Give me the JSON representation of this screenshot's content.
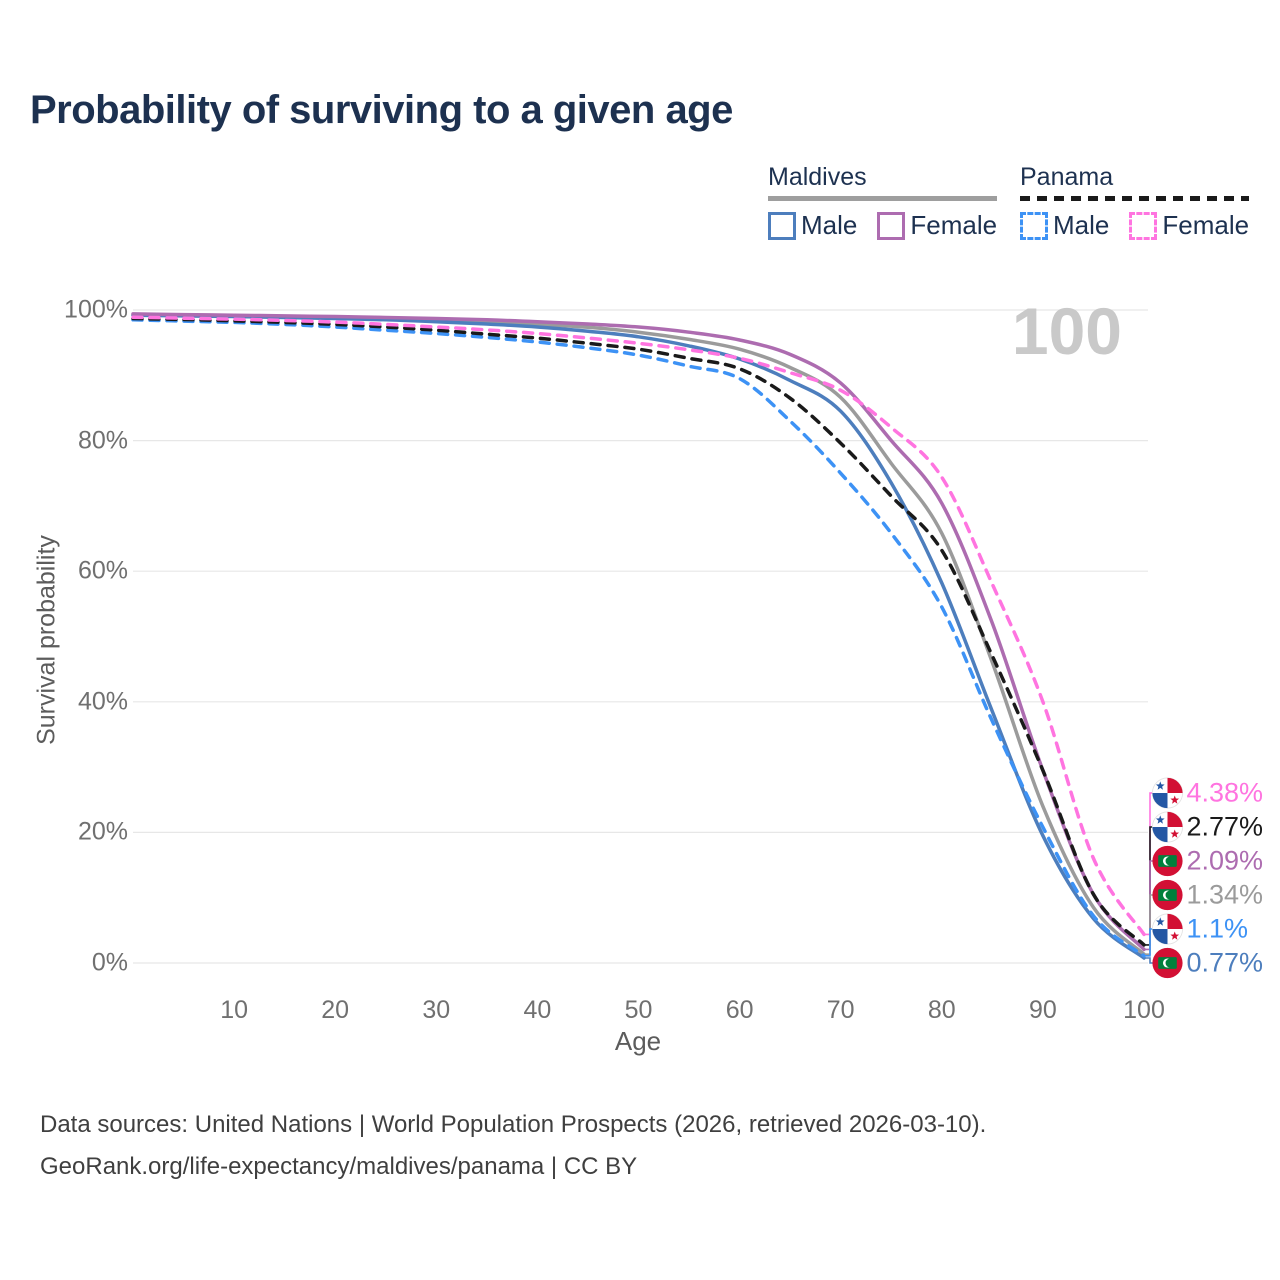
{
  "title": "Probability of surviving to a given age",
  "legend": {
    "groups": [
      {
        "title": "Maldives",
        "line_style": "solid",
        "underline_color": "#9e9e9e",
        "items": [
          {
            "label": "Male",
            "color": "#4d7ebd"
          },
          {
            "label": "Female",
            "color": "#ad6cb0"
          }
        ]
      },
      {
        "title": "Panama",
        "line_style": "dashed",
        "underline_color": "#1a1a1a",
        "items": [
          {
            "label": "Male",
            "color": "#3d92f5"
          },
          {
            "label": "Female",
            "color": "#ff74e0"
          }
        ]
      }
    ]
  },
  "watermark_age": "100",
  "chart_data": {
    "type": "line",
    "title": "Probability of surviving to a given age",
    "xlabel": "Age",
    "ylabel": "Survival probability",
    "xlim": [
      0,
      100
    ],
    "ylim": [
      0,
      100
    ],
    "grid": true,
    "x_ticks": [
      10,
      20,
      30,
      40,
      50,
      60,
      70,
      80,
      90,
      100
    ],
    "y_ticks": [
      {
        "value": 0,
        "label": "0%"
      },
      {
        "value": 20,
        "label": "20%"
      },
      {
        "value": 40,
        "label": "40%"
      },
      {
        "value": 60,
        "label": "60%"
      },
      {
        "value": 80,
        "label": "80%"
      },
      {
        "value": 100,
        "label": "100%"
      }
    ],
    "x": [
      0,
      5,
      10,
      15,
      20,
      25,
      30,
      35,
      40,
      45,
      50,
      55,
      60,
      65,
      70,
      75,
      80,
      85,
      90,
      95,
      100
    ],
    "series": [
      {
        "name": "Maldives",
        "country": "maldives",
        "sex": "both",
        "style": "solid",
        "color": "#9b9b9b",
        "end_label": "1.34%",
        "values": [
          99.3,
          99.2,
          99.1,
          99.0,
          98.85,
          98.7,
          98.45,
          98.15,
          97.8,
          97.35,
          96.6,
          95.5,
          94.0,
          91.2,
          86.6,
          76.5,
          65.8,
          46.0,
          24.0,
          8.5,
          1.34
        ]
      },
      {
        "name": "Maldives Male",
        "country": "maldives",
        "sex": "male",
        "style": "solid",
        "color": "#4d7ebd",
        "end_label": "0.77%",
        "values": [
          99.2,
          99.1,
          99.0,
          98.85,
          98.7,
          98.5,
          98.2,
          97.85,
          97.4,
          96.75,
          95.9,
          94.5,
          92.5,
          89.2,
          84.5,
          73.5,
          58.2,
          38.5,
          19.5,
          6.8,
          0.77
        ]
      },
      {
        "name": "Maldives Female",
        "country": "maldives",
        "sex": "female",
        "style": "solid",
        "color": "#ad6cb0",
        "end_label": "2.09%",
        "values": [
          99.4,
          99.3,
          99.2,
          99.1,
          99.0,
          98.85,
          98.7,
          98.5,
          98.2,
          97.85,
          97.4,
          96.6,
          95.4,
          93.2,
          88.8,
          80.0,
          70.4,
          52.0,
          29.5,
          10.5,
          2.09
        ]
      },
      {
        "name": "Panama Male",
        "country": "panama",
        "sex": "male",
        "style": "dashed",
        "color": "#3d92f5",
        "end_label": "1.1%",
        "values": [
          98.5,
          98.3,
          98.1,
          97.8,
          97.4,
          96.9,
          96.4,
          95.8,
          95.1,
          94.2,
          93.1,
          91.4,
          89.5,
          83.0,
          75.0,
          65.8,
          54.5,
          37.0,
          20.8,
          7.2,
          1.1
        ]
      },
      {
        "name": "Panama",
        "country": "panama",
        "sex": "both",
        "style": "dashed",
        "color": "#1a1a1a",
        "end_label": "2.77%",
        "values": [
          98.7,
          98.55,
          98.35,
          98.1,
          97.8,
          97.4,
          96.9,
          96.3,
          95.7,
          94.9,
          94.0,
          92.6,
          91.0,
          86.5,
          79.6,
          71.5,
          63.2,
          47.0,
          29.5,
          10.5,
          2.77
        ]
      },
      {
        "name": "Panama Female",
        "country": "panama",
        "sex": "female",
        "style": "dashed",
        "color": "#ff74e0",
        "end_label": "4.38%",
        "values": [
          98.9,
          98.75,
          98.6,
          98.4,
          98.15,
          97.8,
          97.4,
          96.95,
          96.4,
          95.7,
          94.9,
          93.9,
          92.6,
          90.4,
          87.7,
          82.0,
          74.4,
          58.0,
          40.0,
          16.0,
          4.38
        ]
      }
    ]
  },
  "footer": {
    "line1": "Data sources: United Nations | World Population Prospects (2026, retrieved 2026-03-10).",
    "line2": "GeoRank.org/life-expectancy/maldives/panama | CC BY"
  }
}
